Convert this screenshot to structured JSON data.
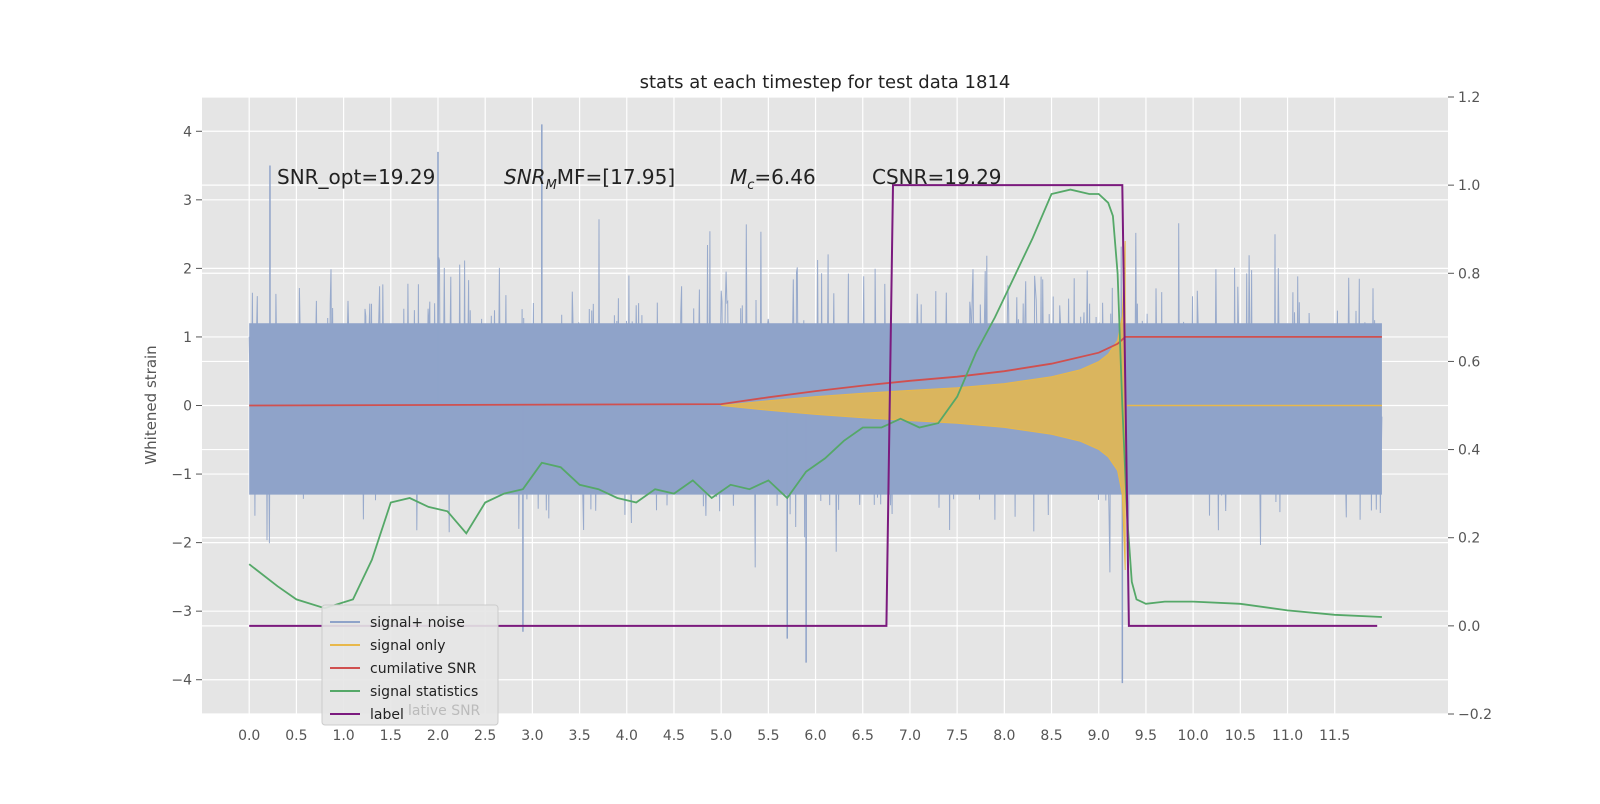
{
  "chart_data": {
    "type": "line",
    "title": "stats at each timestep for test data 1814",
    "ylabel": "Whitened strain",
    "ylabel_right": "",
    "xlabel": "",
    "xlim": [
      -0.5,
      12.7
    ],
    "ylim": [
      -4.5,
      4.5
    ],
    "ylim_right": [
      -0.2,
      1.2
    ],
    "x_ticks": [
      "0.0",
      "0.5",
      "1.0",
      "1.5",
      "2.0",
      "2.5",
      "3.0",
      "3.5",
      "4.0",
      "4.5",
      "5.0",
      "5.5",
      "6.0",
      "6.5",
      "7.0",
      "7.5",
      "8.0",
      "8.5",
      "9.0",
      "9.5",
      "10.0",
      "10.5",
      "11.0",
      "11.5"
    ],
    "y_ticks": [
      "4",
      "3",
      "2",
      "1",
      "0",
      "−1",
      "−2",
      "−3",
      "−4"
    ],
    "y_ticks_right": [
      "1.2",
      "1.0",
      "0.8",
      "0.6",
      "0.4",
      "0.2",
      "0.0",
      "−0.2"
    ],
    "annotations": [
      {
        "text": "SNR_opt=19.29",
        "x": 0.2
      },
      {
        "text": "MF=[17.95]",
        "x": 2.6,
        "math": "SNR"
      },
      {
        "text": "=6.46",
        "x": 5.0,
        "math": "Mc"
      },
      {
        "text": "CSNR=19.29",
        "x": 6.5
      }
    ],
    "grid": true,
    "legend_position": "lower-left",
    "series": [
      {
        "name": "signal+ noise",
        "color": "#8fa3c9",
        "axis": "left",
        "x_range": [
          0.0,
          12.0
        ],
        "typical_envelope": [
          -2.0,
          2.2
        ],
        "notable_peaks": [
          {
            "x": 3.1,
            "y": 4.1
          },
          {
            "x": 2.0,
            "y": 3.7
          },
          {
            "x": 0.22,
            "y": 3.5
          },
          {
            "x": 5.9,
            "y": -3.75
          },
          {
            "x": 9.25,
            "y": -4.05
          },
          {
            "x": 5.7,
            "y": -3.4
          },
          {
            "x": 2.9,
            "y": -3.3
          }
        ]
      },
      {
        "name": "signal only",
        "color": "#e8b84b",
        "axis": "left",
        "x": [
          5.0,
          5.5,
          6.0,
          6.5,
          7.0,
          7.5,
          8.0,
          8.5,
          8.8,
          9.0,
          9.1,
          9.2,
          9.25,
          9.28
        ],
        "amplitude": [
          0.0,
          0.07,
          0.13,
          0.18,
          0.22,
          0.26,
          0.32,
          0.42,
          0.52,
          0.64,
          0.75,
          0.95,
          1.3,
          2.4
        ]
      },
      {
        "name": "cumilative SNR",
        "color": "#d0504f",
        "axis": "left",
        "x": [
          0.0,
          5.0,
          5.5,
          6.0,
          6.5,
          7.0,
          7.5,
          8.0,
          8.5,
          9.0,
          9.2,
          9.28,
          12.0
        ],
        "values": [
          0.0,
          0.02,
          0.12,
          0.21,
          0.29,
          0.36,
          0.42,
          0.5,
          0.61,
          0.77,
          0.9,
          1.0,
          1.0
        ]
      },
      {
        "name": "signal statistics",
        "color": "#55a868",
        "axis": "right",
        "x": [
          0.0,
          0.3,
          0.5,
          0.8,
          1.1,
          1.3,
          1.5,
          1.7,
          1.9,
          2.1,
          2.3,
          2.5,
          2.7,
          2.9,
          3.1,
          3.3,
          3.5,
          3.7,
          3.9,
          4.1,
          4.3,
          4.5,
          4.7,
          4.9,
          5.1,
          5.3,
          5.5,
          5.7,
          5.9,
          6.1,
          6.3,
          6.5,
          6.7,
          6.9,
          7.1,
          7.3,
          7.5,
          7.7,
          7.9,
          8.1,
          8.3,
          8.5,
          8.7,
          8.9,
          9.0,
          9.1,
          9.15,
          9.2,
          9.25,
          9.3,
          9.35,
          9.4,
          9.5,
          9.7,
          10.0,
          10.5,
          11.0,
          11.5,
          12.0
        ],
        "values": [
          0.14,
          0.09,
          0.06,
          0.04,
          0.06,
          0.15,
          0.28,
          0.29,
          0.27,
          0.26,
          0.21,
          0.28,
          0.3,
          0.31,
          0.37,
          0.36,
          0.32,
          0.31,
          0.29,
          0.28,
          0.31,
          0.3,
          0.33,
          0.29,
          0.32,
          0.31,
          0.33,
          0.29,
          0.35,
          0.38,
          0.42,
          0.45,
          0.45,
          0.47,
          0.45,
          0.46,
          0.52,
          0.62,
          0.7,
          0.79,
          0.88,
          0.98,
          0.99,
          0.98,
          0.98,
          0.96,
          0.93,
          0.8,
          0.5,
          0.25,
          0.1,
          0.06,
          0.05,
          0.055,
          0.055,
          0.05,
          0.035,
          0.025,
          0.02
        ]
      },
      {
        "name": "label",
        "color": "#7b1a7e",
        "axis": "right",
        "x": [
          0.0,
          6.75,
          6.82,
          9.25,
          9.32,
          11.95
        ],
        "values": [
          0.0,
          0.0,
          1.0,
          1.0,
          0.0,
          0.0
        ]
      }
    ]
  },
  "legend_ghost_text": "lative SNR"
}
